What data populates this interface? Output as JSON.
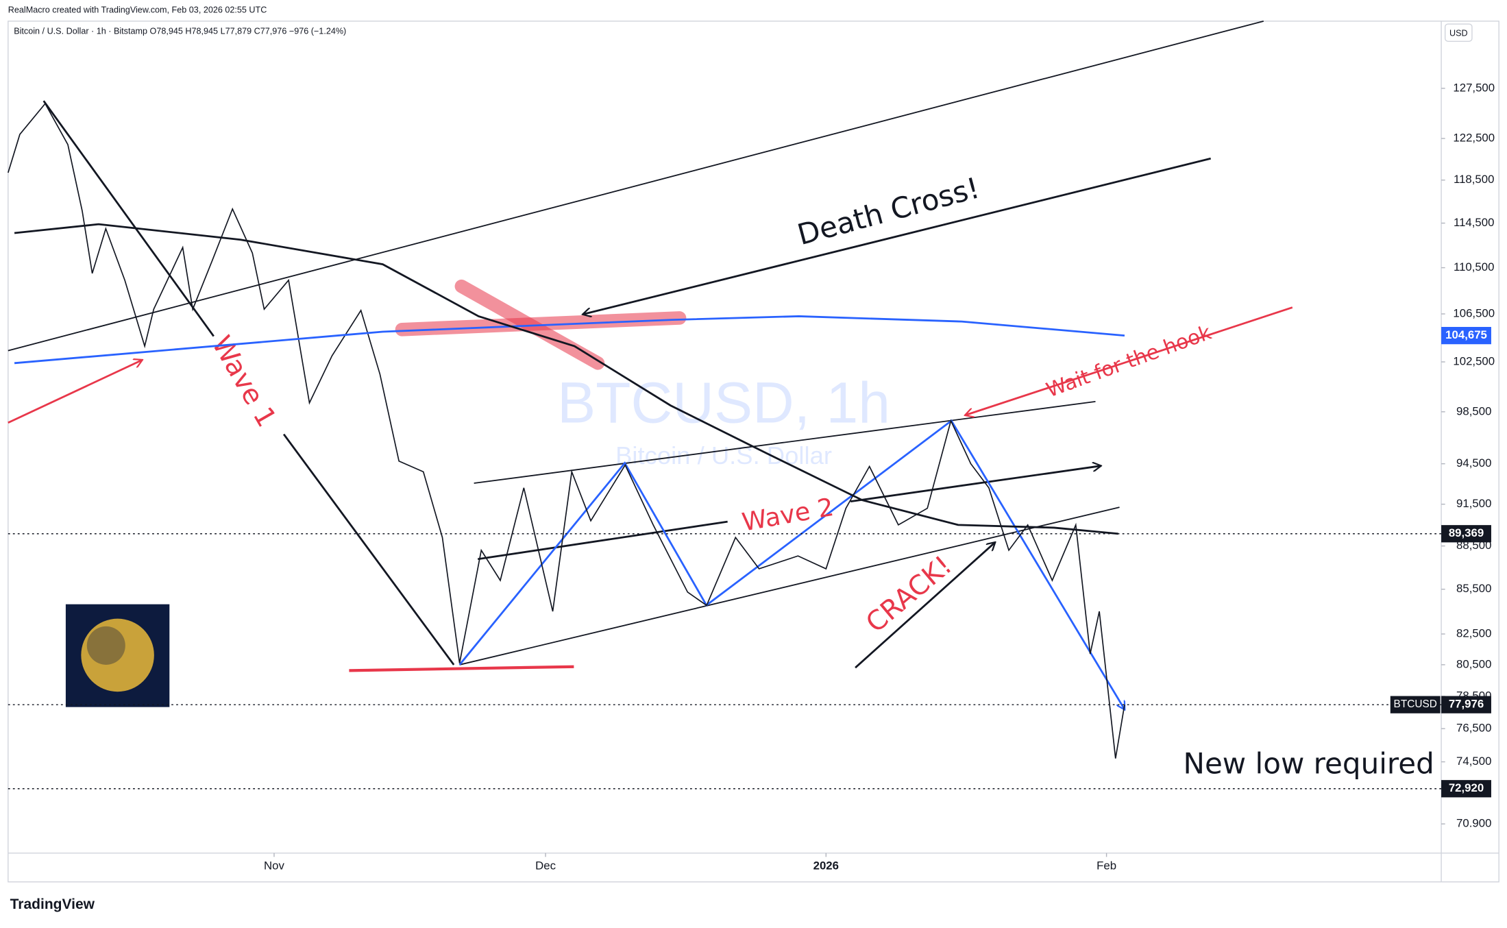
{
  "header": {
    "credit": "RealMacro created with TradingView.com, Feb 03, 2026 02:55 UTC",
    "legend": "Bitcoin / U.S. Dollar · 1h · Bitstamp  O78,945  H78,945  L77,879  C77,976  −976 (−1.24%)",
    "currency": "USD",
    "brand": "TradingView"
  },
  "chart_data": {
    "type": "line",
    "log_scale": true,
    "watermark": "BTCUSD, 1h",
    "watermark_subtitle": "Bitcoin / U.S. Dollar",
    "xlim": [
      -29.4,
      129
    ],
    "xticks": [
      {
        "value": 0,
        "label": "Nov"
      },
      {
        "value": 30,
        "label": "Dec"
      },
      {
        "value": 61,
        "label": "2026"
      },
      {
        "value": 92,
        "label": "Feb"
      }
    ],
    "ylim": [
      69270,
      134520
    ],
    "yticks": [
      {
        "value": 127500,
        "label": "127,500"
      },
      {
        "value": 122500,
        "label": "122,500"
      },
      {
        "value": 118500,
        "label": "118,500"
      },
      {
        "value": 114500,
        "label": "114,500"
      },
      {
        "value": 110500,
        "label": "110,500"
      },
      {
        "value": 106500,
        "label": "106,500"
      },
      {
        "value": 102500,
        "label": "102,500"
      },
      {
        "value": 98500,
        "label": "98,500"
      },
      {
        "value": 94500,
        "label": "94,500"
      },
      {
        "value": 91500,
        "label": "91,500"
      },
      {
        "value": 88500,
        "label": "88,500"
      },
      {
        "value": 85500,
        "label": "85,500"
      },
      {
        "value": 82500,
        "label": "82,500"
      },
      {
        "value": 80500,
        "label": "80,500"
      },
      {
        "value": 78500,
        "label": "78,500"
      },
      {
        "value": 76500,
        "label": "76,500"
      },
      {
        "value": 74500,
        "label": "74,500"
      },
      {
        "value": 70900,
        "label": "70.900"
      }
    ],
    "series": [
      {
        "name": "BTCUSD",
        "color": "#131722",
        "x": [
          -29.4,
          -28.1,
          -25.3,
          -22.8,
          -21.2,
          -20.1,
          -18.6,
          -16.5,
          -14.3,
          -13.3,
          -10.1,
          -9,
          -6.9,
          -4.6,
          -2.4,
          -1.1,
          1.6,
          3.9,
          6.4,
          9.6,
          11.7,
          13.8,
          16.5,
          18.6,
          20.5,
          22.9,
          25,
          27.6,
          30.8,
          32.9,
          35,
          38.8,
          41.9,
          45.7,
          47.8,
          51,
          53.6,
          57.9,
          61,
          63.2,
          65.8,
          69,
          72.2,
          74.8,
          77,
          79,
          81.2,
          83.3,
          86,
          88.6,
          90.2,
          91.2,
          93,
          94
        ],
        "values": [
          119200,
          122900,
          125950,
          121900,
          115600,
          110000,
          114000,
          109400,
          103800,
          106900,
          112300,
          106900,
          111000,
          115800,
          111800,
          106900,
          109400,
          99200,
          103000,
          106800,
          101500,
          94700,
          93900,
          89100,
          80600,
          88200,
          86100,
          92700,
          84000,
          93900,
          90300,
          94400,
          90000,
          85300,
          84400,
          89100,
          86900,
          87800,
          86900,
          91200,
          94300,
          90000,
          91200,
          97800,
          94500,
          92700,
          88200,
          90000,
          86100,
          90000,
          81200,
          84000,
          74700,
          77976
        ]
      },
      {
        "name": "MA blue",
        "color": "#2962ff",
        "x": [
          -28.7,
          12,
          44,
          58,
          76,
          94
        ],
        "values": [
          102400,
          105000,
          106000,
          106300,
          105850,
          104675
        ]
      },
      {
        "name": "MA black",
        "color": "#131722",
        "x": [
          -28.7,
          -19.4,
          -3.7,
          12,
          22.6,
          33.2,
          43.8,
          54.4,
          65,
          75.6,
          86.2,
          93.3
        ],
        "values": [
          113600,
          114400,
          113000,
          110800,
          106300,
          103800,
          99000,
          95300,
          91800,
          90000,
          89800,
          89369
        ]
      }
    ],
    "price_labels": [
      {
        "value": 104675,
        "label": "104,675",
        "color": "#2962ff"
      },
      {
        "value": 89369,
        "label": "89,369",
        "color": "#131722"
      },
      {
        "value": 77976,
        "label": "77,976",
        "color": "#131722",
        "tag": "BTCUSD"
      },
      {
        "value": 72920,
        "label": "72,920",
        "color": "#131722"
      }
    ],
    "annotations": {
      "death_cross": "Death Cross!",
      "wave1": "Wave 1",
      "wave2": "Wave 2",
      "hook": "Wait for the hook",
      "crack": "CRACK!",
      "new_low": "New low required"
    }
  }
}
